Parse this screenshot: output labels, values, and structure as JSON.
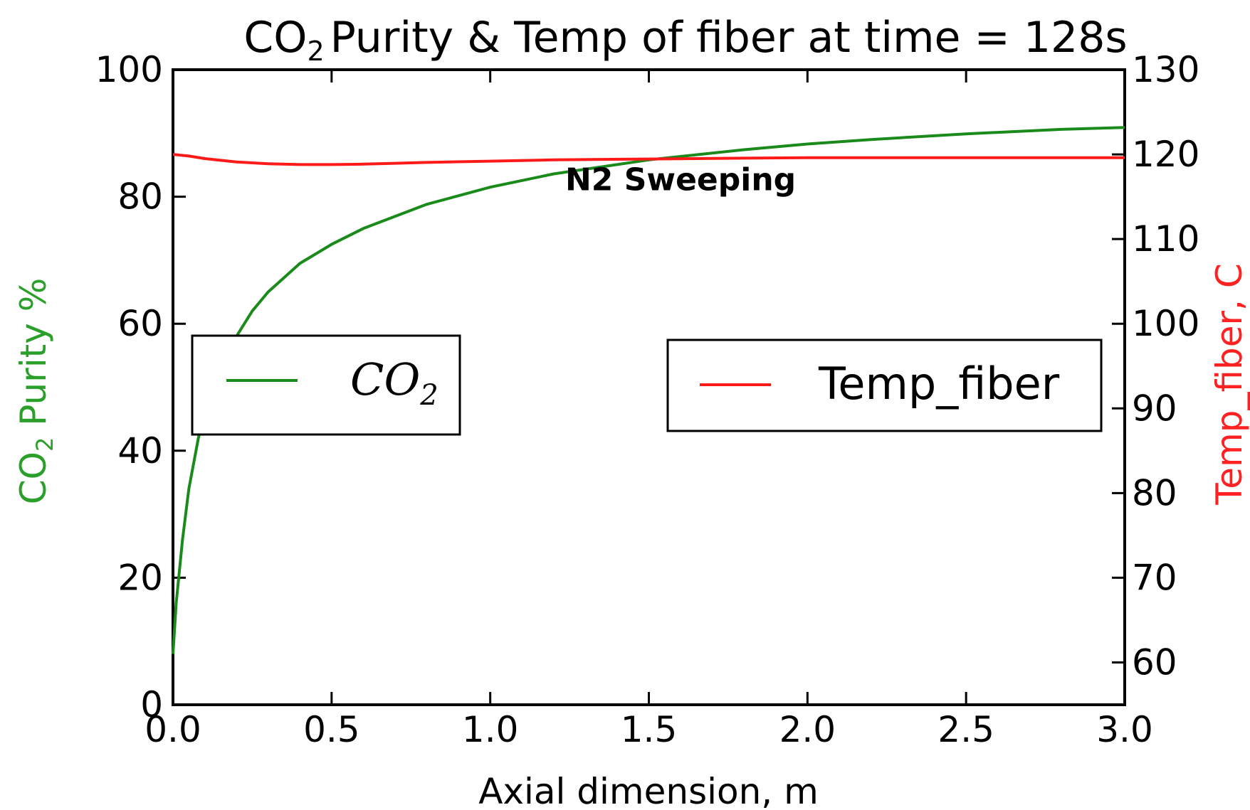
{
  "chart_data": {
    "type": "line",
    "title": {
      "prefix": "CO",
      "sub": "2",
      "rest": "Purity & Temp  of fiber at time  =  128s"
    },
    "xlabel": "Axial dimension, m",
    "ylabel_left": {
      "prefix": "CO",
      "sub": "2",
      "rest": " Purity %"
    },
    "ylabel_right": "Temp_fiber, C",
    "xlim": [
      0.0,
      3.0
    ],
    "ylim_left": [
      0,
      100
    ],
    "ylim_right": [
      55,
      130
    ],
    "x_ticks": [
      "0.0",
      "0.5",
      "1.0",
      "1.5",
      "2.0",
      "2.5",
      "3.0"
    ],
    "y_ticks_left": [
      "0",
      "20",
      "40",
      "60",
      "80",
      "100"
    ],
    "y_ticks_right": [
      "60",
      "70",
      "80",
      "90",
      "100",
      "110",
      "120",
      "130"
    ],
    "grid": false,
    "annotation": {
      "text": "N2 Sweeping",
      "x": 1.6,
      "y": 81
    },
    "legend_left": {
      "placement": "center-left",
      "entry": {
        "prefix": "CO",
        "sub": "2"
      }
    },
    "legend_right": {
      "placement": "center-right",
      "entry": "Temp_fiber"
    },
    "colors": {
      "co2": "#1a8a1a",
      "temp": "#ff1a1a",
      "left_label": "#2aa02a",
      "right_label": "#ff2222"
    },
    "series": [
      {
        "axis": "left",
        "color": "#1a8a1a",
        "x": [
          0.0,
          0.01,
          0.03,
          0.05,
          0.08,
          0.1,
          0.15,
          0.2,
          0.25,
          0.3,
          0.4,
          0.5,
          0.6,
          0.8,
          1.0,
          1.2,
          1.5,
          1.8,
          2.0,
          2.2,
          2.5,
          2.8,
          3.0
        ],
        "y": [
          8,
          16,
          26,
          34,
          42,
          46,
          53,
          58,
          62,
          65,
          69.5,
          72.5,
          75,
          78.8,
          81.5,
          83.6,
          85.8,
          87.4,
          88.3,
          89,
          89.9,
          90.6,
          90.9
        ]
      },
      {
        "axis": "right",
        "color": "#ff1a1a",
        "x": [
          0.0,
          0.05,
          0.1,
          0.2,
          0.3,
          0.4,
          0.5,
          0.6,
          0.7,
          0.8,
          1.0,
          1.2,
          1.5,
          1.8,
          2.0,
          2.5,
          3.0
        ],
        "y": [
          120.0,
          119.8,
          119.5,
          119.1,
          118.9,
          118.8,
          118.8,
          118.85,
          118.95,
          119.05,
          119.2,
          119.35,
          119.45,
          119.55,
          119.6,
          119.6,
          119.6
        ]
      }
    ]
  }
}
